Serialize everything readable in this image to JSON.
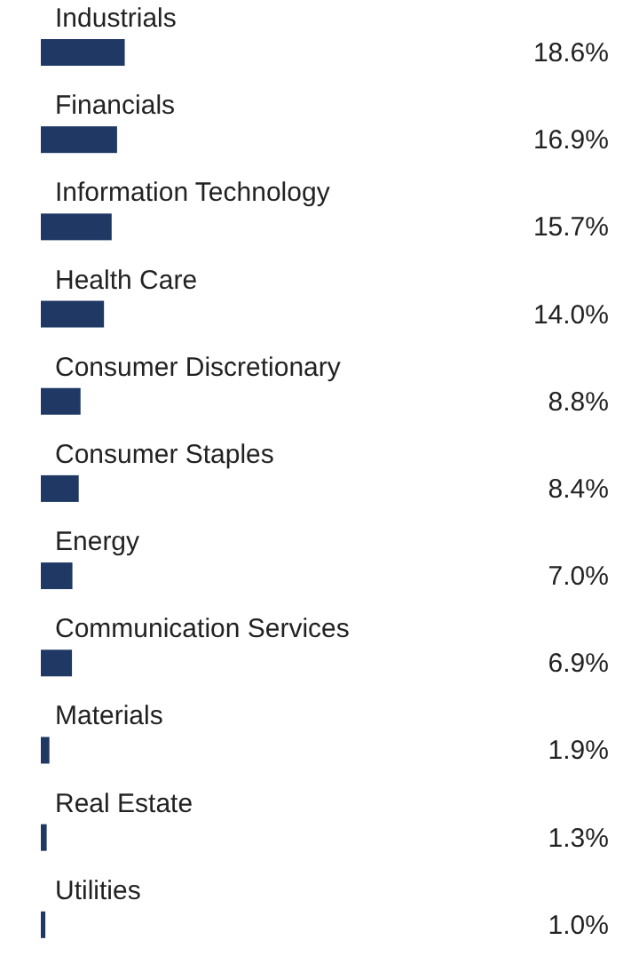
{
  "chart_data": {
    "type": "bar",
    "orientation": "horizontal",
    "value_labels": [
      "18.6%",
      "16.9%",
      "15.7%",
      "14.0%",
      "8.8%",
      "8.4%",
      "7.0%",
      "6.9%",
      "1.9%",
      "1.3%",
      "1.0%"
    ],
    "categories": [
      "Industrials",
      "Financials",
      "Information Technology",
      "Health Care",
      "Consumer Discretionary",
      "Consumer Staples",
      "Energy",
      "Communication Services",
      "Materials",
      "Real Estate",
      "Utilities"
    ],
    "values": [
      18.6,
      16.9,
      15.7,
      14.0,
      8.8,
      8.4,
      7.0,
      6.9,
      1.9,
      1.3,
      1.0
    ],
    "color": "#1f3864"
  }
}
